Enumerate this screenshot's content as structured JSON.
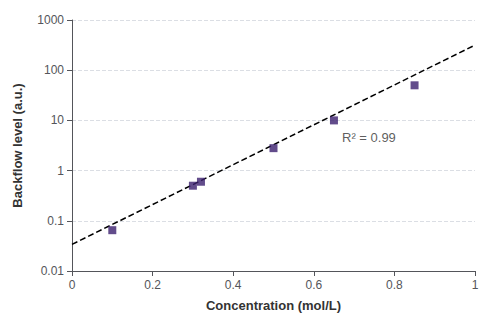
{
  "chart_data": {
    "type": "scatter",
    "x_label": "Concentration (mol/L)",
    "y_label": "Backflow level (a.u.)",
    "log": "y",
    "grid": "y",
    "xlim": [
      0,
      1
    ],
    "xticks": [
      0,
      0.2,
      0.4,
      0.6,
      0.8,
      1
    ],
    "ylim": [
      0.01,
      1000
    ],
    "yticks": [
      0.01,
      0.1,
      1,
      10,
      100,
      1000
    ],
    "series": [
      {
        "type": "line",
        "color": "black",
        "line_style": "dashed",
        "x": [
          0,
          1
        ],
        "values": [
          0.03388441561392026,
          316.22776601683796
        ]
      },
      {
        "type": "scatter",
        "color": "#3B1F6E",
        "marker": "square",
        "x": [
          0.1,
          0.3,
          0.32,
          0.5,
          0.65,
          0.85
        ],
        "values": [
          0.065,
          0.5,
          0.6,
          2.8,
          10.0,
          50.0
        ]
      }
    ],
    "annotations": [
      {
        "text": "R² = 0.99",
        "x": 0.67,
        "y": 4.5
      }
    ]
  }
}
